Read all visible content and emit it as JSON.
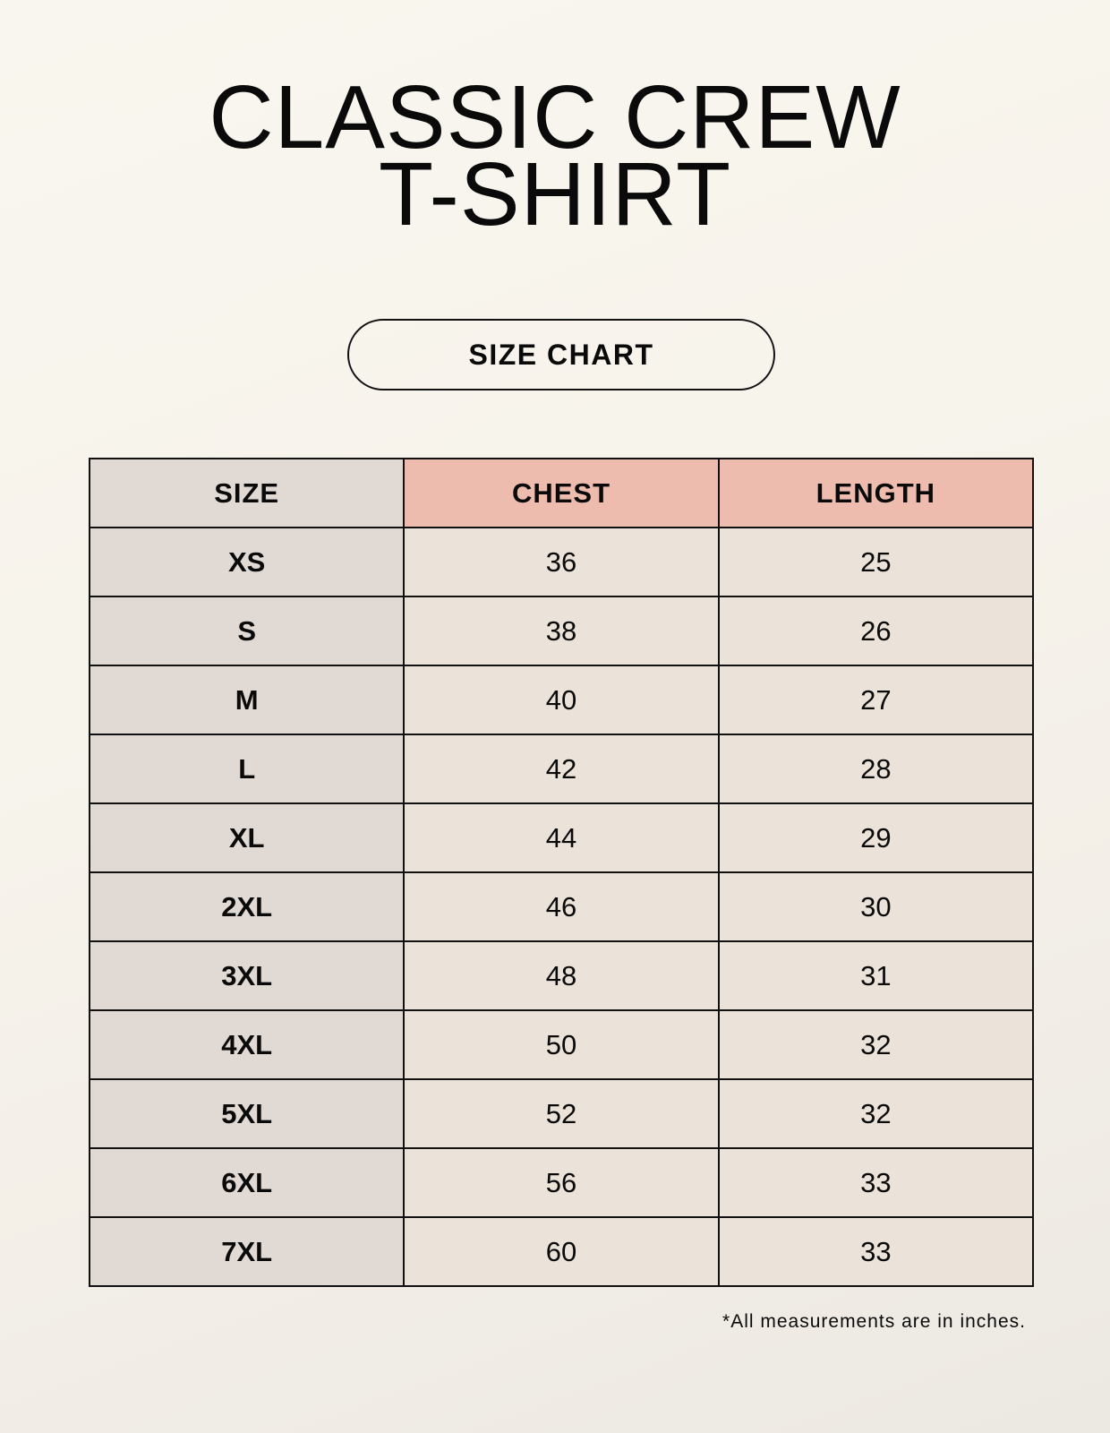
{
  "title": {
    "line1": "CLASSIC CREW",
    "line2": "T-SHIRT"
  },
  "badge": "SIZE CHART",
  "table": {
    "headers": [
      "SIZE",
      "CHEST",
      "LENGTH"
    ],
    "rows": [
      [
        "XS",
        "36",
        "25"
      ],
      [
        "S",
        "38",
        "26"
      ],
      [
        "M",
        "40",
        "27"
      ],
      [
        "L",
        "42",
        "28"
      ],
      [
        "XL",
        "44",
        "29"
      ],
      [
        "2XL",
        "46",
        "30"
      ],
      [
        "3XL",
        "48",
        "31"
      ],
      [
        "4XL",
        "50",
        "32"
      ],
      [
        "5XL",
        "52",
        "32"
      ],
      [
        "6XL",
        "56",
        "33"
      ],
      [
        "7XL",
        "60",
        "33"
      ]
    ]
  },
  "footnote": "*All measurements are in inches.",
  "colors": {
    "header_accent": "#edbcaf",
    "size_column": "#e0d9d4",
    "value_cells": "#ebe3d9"
  }
}
